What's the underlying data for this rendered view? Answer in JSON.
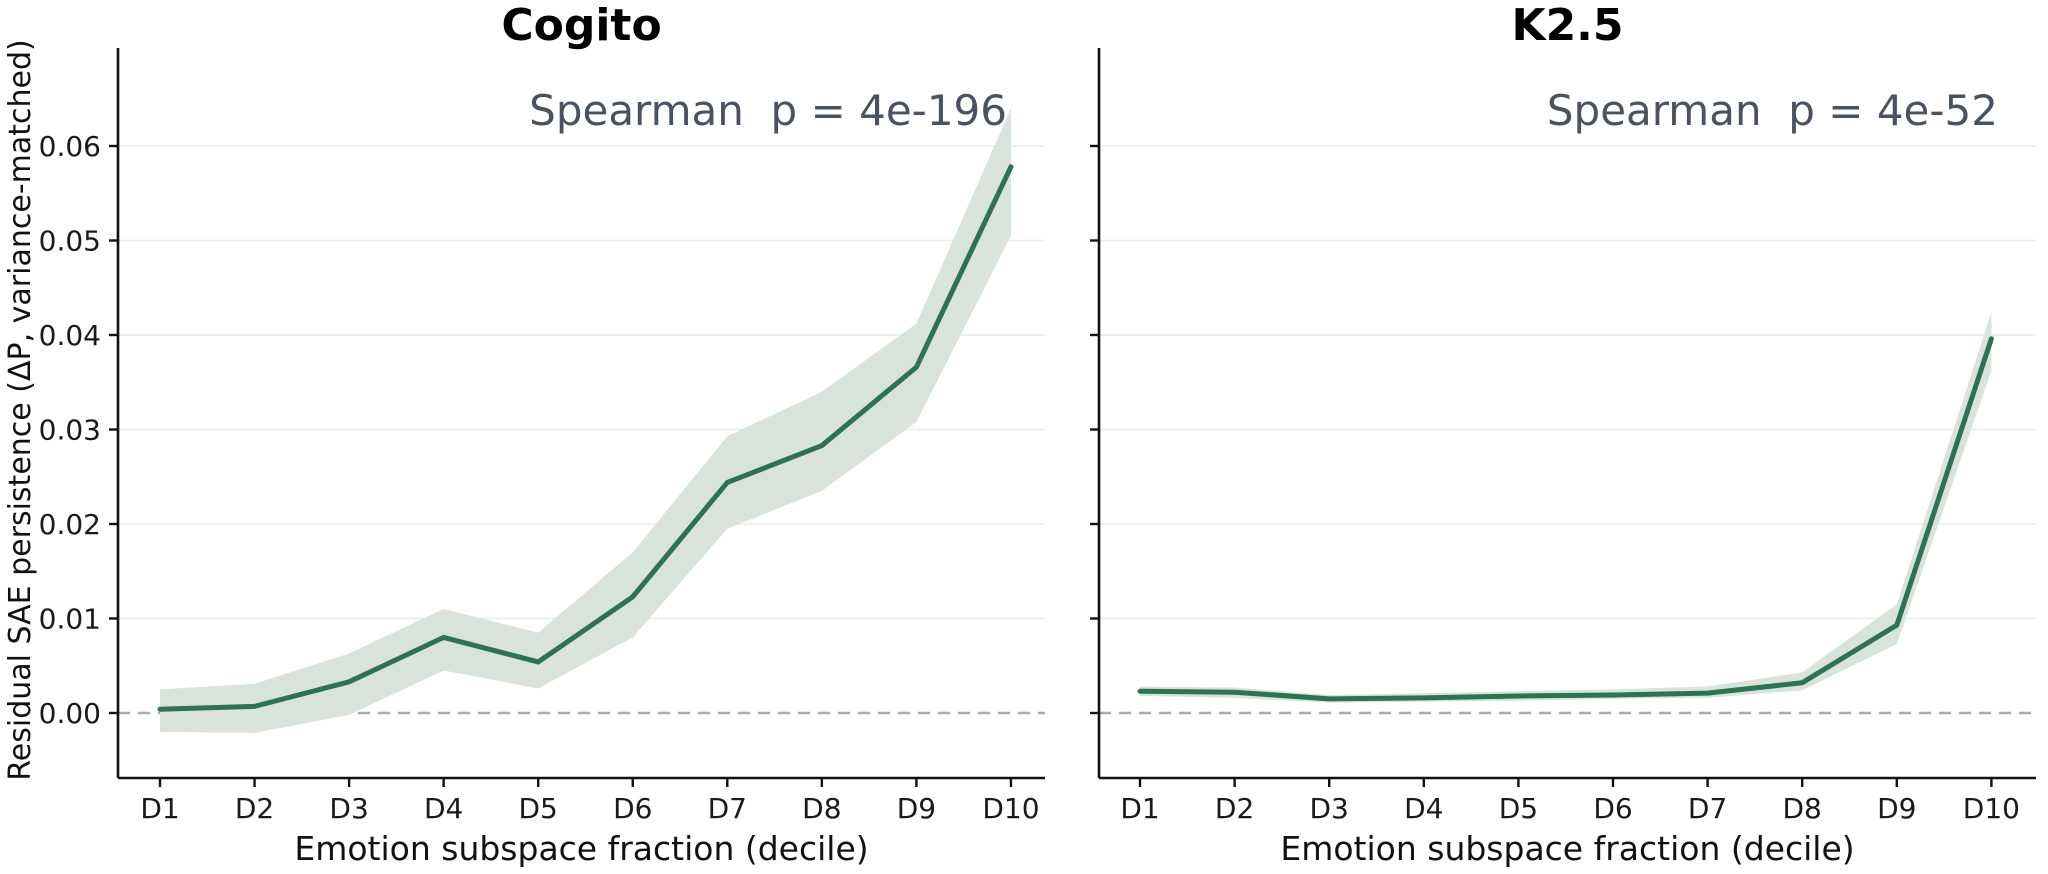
{
  "figure": {
    "ylabel": "Residual SAE persistence (ΔP, variance-matched)",
    "xlabel": "Emotion subspace fraction (decile)",
    "colors": {
      "line": "#2e7154",
      "band": "#d8e3dc",
      "zero_line": "#a7abb0",
      "grid": "#ececec",
      "axis": "#111111",
      "annotation": "#49525e",
      "title": "#000000"
    }
  },
  "chart_data": [
    {
      "type": "line",
      "title": "Cogito",
      "annotation": "Spearman  p = 4e-196",
      "xlabel": "Emotion subspace fraction (decile)",
      "ylabel": "Residual SAE persistence (ΔP, variance-matched)",
      "categories": [
        "D1",
        "D2",
        "D3",
        "D4",
        "D5",
        "D6",
        "D7",
        "D8",
        "D9",
        "D10"
      ],
      "y_ticks": [
        "0.00",
        "0.01",
        "0.02",
        "0.03",
        "0.04",
        "0.05",
        "0.06"
      ],
      "y_tick_values": [
        0.0,
        0.01,
        0.02,
        0.03,
        0.04,
        0.05,
        0.06
      ],
      "y_grid_values": [
        0.01,
        0.02,
        0.03,
        0.04,
        0.05,
        0.06
      ],
      "series": [
        {
          "name": "mean",
          "values": [
            0.0004,
            0.0007,
            0.0033,
            0.008,
            0.0054,
            0.0123,
            0.0244,
            0.0283,
            0.0366,
            0.0578
          ]
        },
        {
          "name": "band_upper",
          "values": [
            0.0025,
            0.0031,
            0.0063,
            0.011,
            0.0085,
            0.017,
            0.0293,
            0.034,
            0.0412,
            0.064
          ]
        },
        {
          "name": "band_lower",
          "values": [
            -0.002,
            -0.0021,
            -0.0002,
            0.0045,
            0.0026,
            0.008,
            0.0195,
            0.0235,
            0.0308,
            0.0505
          ]
        }
      ],
      "zero_line": 0.0,
      "ylim": [
        -0.0069,
        0.0704
      ],
      "grid": "horizontal",
      "legend": "none"
    },
    {
      "type": "line",
      "title": "K2.5",
      "annotation": "Spearman  p = 4e-52",
      "xlabel": "Emotion subspace fraction (decile)",
      "ylabel": "",
      "categories": [
        "D1",
        "D2",
        "D3",
        "D4",
        "D5",
        "D6",
        "D7",
        "D8",
        "D9",
        "D10"
      ],
      "y_ticks": [],
      "y_tick_values": [
        0.0,
        0.01,
        0.02,
        0.03,
        0.04,
        0.05,
        0.06
      ],
      "y_grid_values": [
        0.01,
        0.02,
        0.03,
        0.04,
        0.05,
        0.06
      ],
      "series": [
        {
          "name": "mean",
          "values": [
            0.0023,
            0.0022,
            0.0015,
            0.0016,
            0.0018,
            0.0019,
            0.0021,
            0.0032,
            0.0093,
            0.0396
          ]
        },
        {
          "name": "band_upper",
          "values": [
            0.0028,
            0.0027,
            0.0019,
            0.0021,
            0.0023,
            0.0025,
            0.0028,
            0.0043,
            0.0115,
            0.0424
          ]
        },
        {
          "name": "band_lower",
          "values": [
            0.0018,
            0.0016,
            0.0011,
            0.0012,
            0.0013,
            0.0015,
            0.0016,
            0.0024,
            0.0073,
            0.0362
          ]
        }
      ],
      "zero_line": 0.0,
      "ylim": [
        -0.0069,
        0.0704
      ],
      "grid": "horizontal",
      "legend": "none"
    }
  ]
}
